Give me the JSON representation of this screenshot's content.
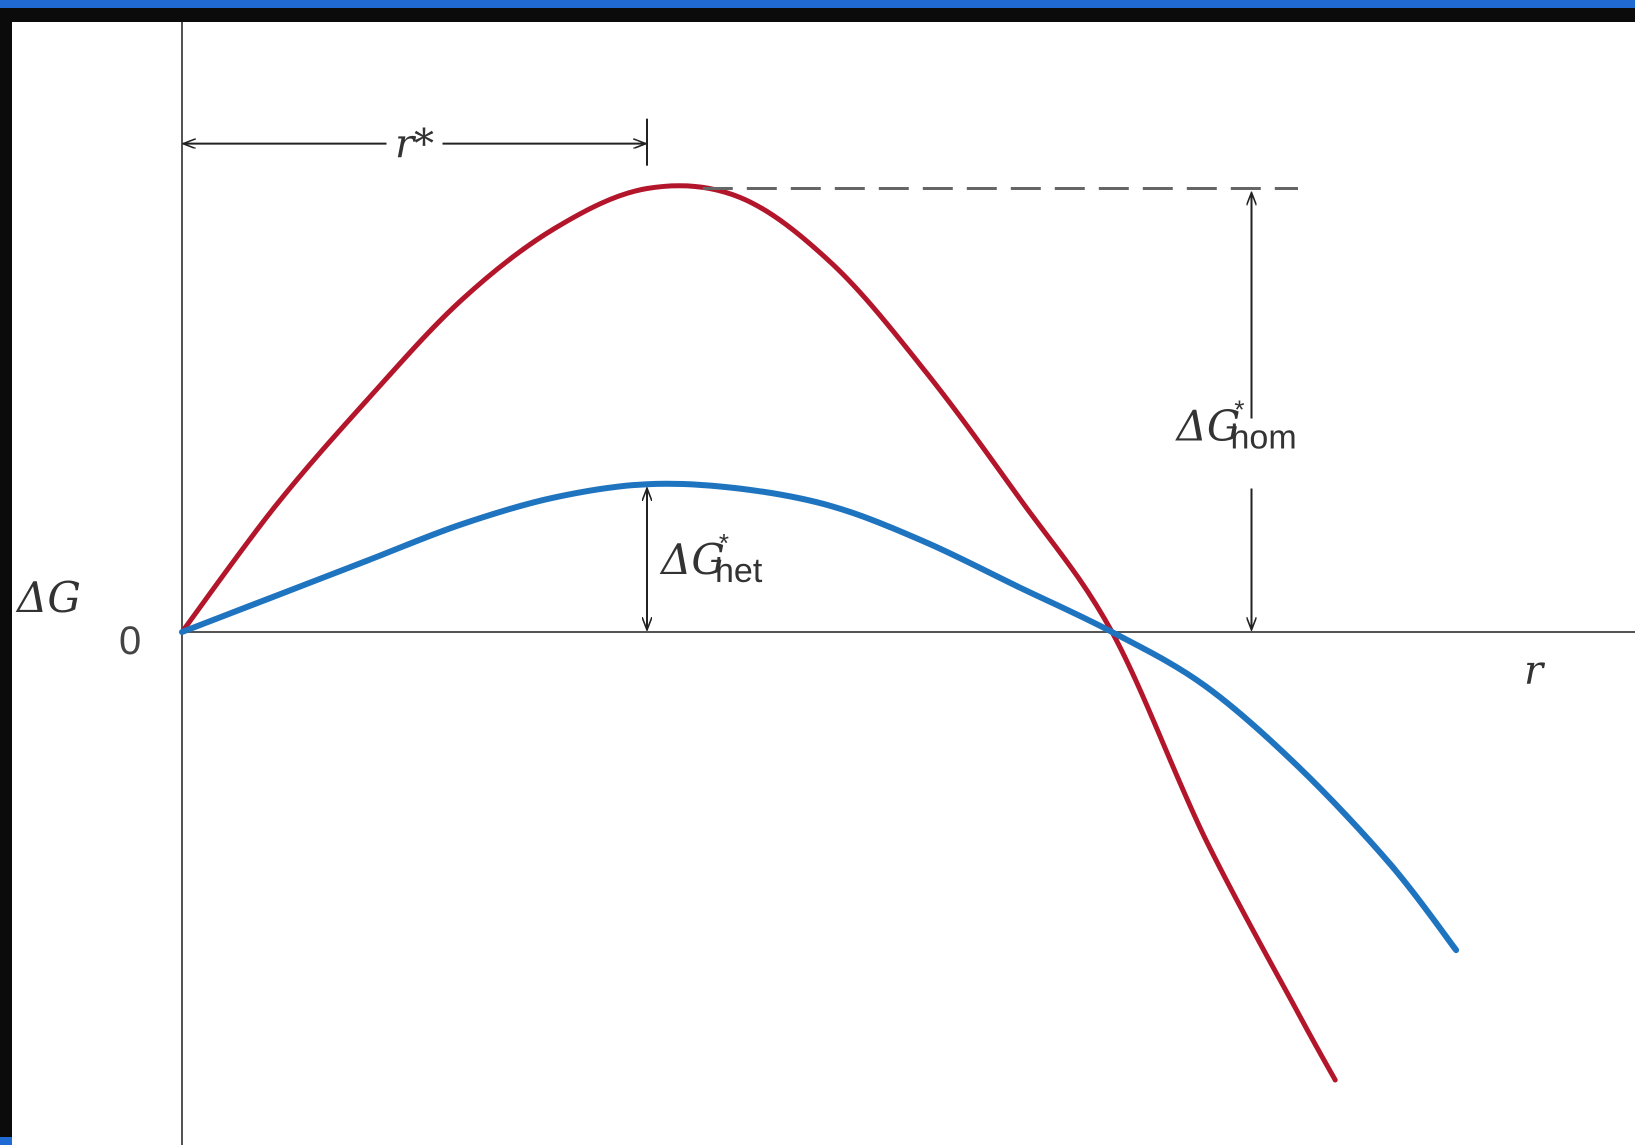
{
  "colors": {
    "homogeneous": "#b3162b",
    "heterogeneous": "#1f74c0",
    "axis": "#555555",
    "annotation": "#222222",
    "frame_border": "#1f6ad3"
  },
  "chart_data": {
    "type": "line",
    "title": "",
    "xlabel": "r",
    "ylabel": "ΔG",
    "y_zero_tick": "0",
    "grid": false,
    "legend": "none",
    "xlim": [
      0,
      1.51
    ],
    "ylim": [
      -1.03,
      1.0
    ],
    "series": [
      {
        "key": "homogeneous",
        "x": [
          0,
          0.1,
          0.2,
          0.3,
          0.4,
          0.5,
          0.6,
          0.7,
          0.8,
          0.9,
          1.0,
          1.1,
          1.2,
          1.24
        ],
        "y": [
          0,
          0.28,
          0.52,
          0.74,
          0.9,
          0.99,
          0.97,
          0.82,
          0.58,
          0.3,
          0.0,
          -0.46,
          -0.85,
          -1.0
        ]
      },
      {
        "key": "heterogeneous",
        "x": [
          0,
          0.1,
          0.2,
          0.3,
          0.4,
          0.5,
          0.6,
          0.7,
          0.8,
          0.9,
          1.0,
          1.1,
          1.2,
          1.3,
          1.37
        ],
        "y": [
          0,
          0.08,
          0.16,
          0.24,
          0.3,
          0.33,
          0.32,
          0.28,
          0.2,
          0.1,
          0.0,
          -0.12,
          -0.3,
          -0.52,
          -0.71
        ]
      }
    ],
    "annotations": {
      "r_star": {
        "text": "r*",
        "x_from": 0,
        "x_to": 0.5,
        "y": 1.09
      },
      "dG_hom": {
        "main": "ΔG",
        "sup": "*",
        "sub": "hom",
        "x": 1.15,
        "y_from": 0,
        "y_to": 0.99
      },
      "dG_het": {
        "main": "ΔG",
        "sup": "*",
        "sub": "het",
        "x": 0.5,
        "y_from": 0,
        "y_to": 0.33
      },
      "dashed_line": {
        "x_from": 0.56,
        "x_to": 1.2,
        "y": 0.99
      }
    }
  }
}
